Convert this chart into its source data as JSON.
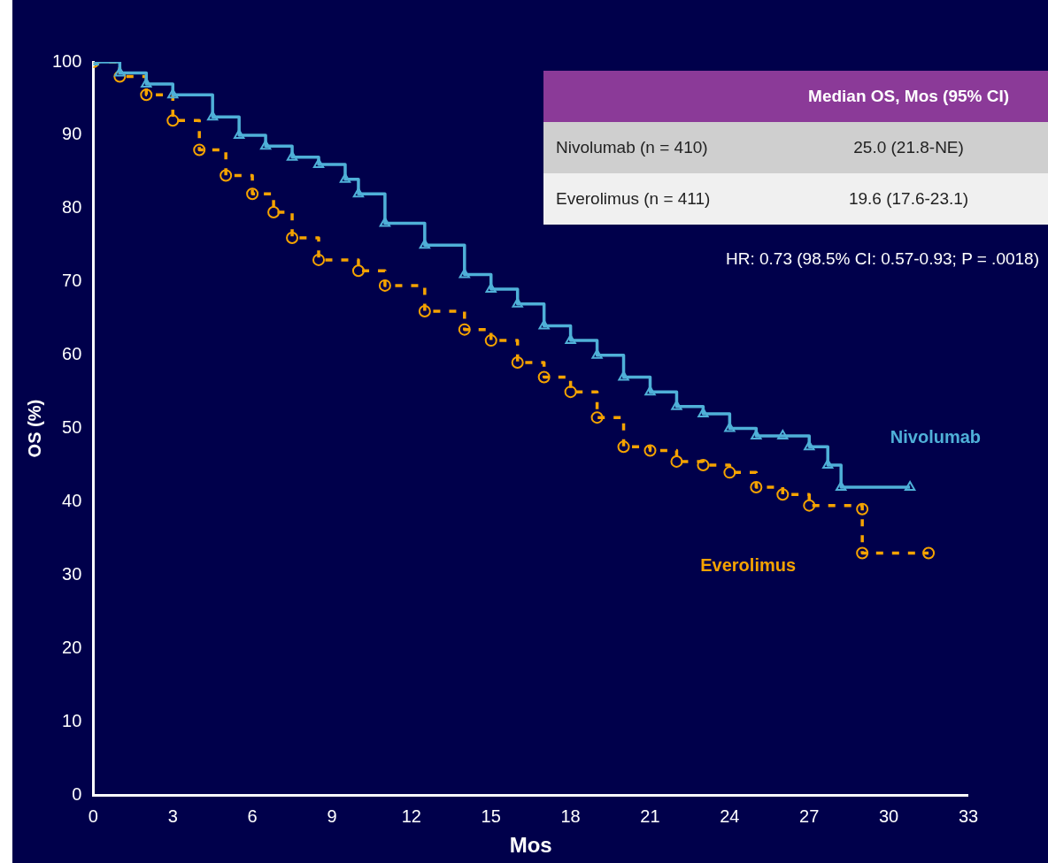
{
  "chart_data": {
    "type": "step",
    "xlabel": "Mos",
    "ylabel": "OS (%)",
    "xlim": [
      0,
      33
    ],
    "xticks": [
      0,
      3,
      6,
      9,
      12,
      15,
      18,
      21,
      24,
      27,
      30,
      33
    ],
    "ylim": [
      0,
      100
    ],
    "yticks": [
      0,
      10,
      20,
      30,
      40,
      50,
      60,
      70,
      80,
      90,
      100
    ],
    "grid": false,
    "legend": false,
    "annotations": [
      "Median OS, Mos (95% CI)",
      "Nivolumab (n = 410)",
      "25.0 (21.8-NE)",
      "Everolimus (n = 411)",
      "19.6 (17.6-23.1)",
      "HR: 0.73 (98.5% CI: 0.57-0.93; P = .0018)"
    ],
    "series": [
      {
        "name": "Nivolumab",
        "color": "#4fb0d8",
        "marker": "triangle",
        "line_style": "solid",
        "x": [
          0,
          1,
          2,
          3,
          4.5,
          5.5,
          6.5,
          7.5,
          8.5,
          9.5,
          10,
          11,
          12.5,
          14,
          15,
          16,
          17,
          18,
          19,
          20,
          21,
          22,
          23,
          24,
          25,
          26,
          27,
          27.7,
          28.2,
          30.8
        ],
        "values": [
          100,
          98.5,
          97,
          95.5,
          92.5,
          90,
          88.5,
          87,
          86,
          84,
          82,
          78,
          75,
          71,
          69,
          67,
          64,
          62,
          60,
          57,
          55,
          53,
          52,
          50,
          49,
          49,
          47.5,
          45,
          42,
          42
        ]
      },
      {
        "name": "Everolimus",
        "color": "#f5a300",
        "marker": "circle",
        "line_style": "dashed",
        "x": [
          0,
          1,
          2,
          3,
          4,
          5,
          6,
          6.8,
          7.5,
          8.5,
          10,
          11,
          12.5,
          14,
          15,
          16,
          17,
          18,
          19,
          20,
          21,
          22,
          23,
          24,
          25,
          26,
          27,
          29,
          29,
          31.5
        ],
        "values": [
          100,
          98,
          95.5,
          92,
          88,
          84.5,
          82,
          79.5,
          76,
          73,
          71.5,
          69.5,
          66,
          63.5,
          62,
          59,
          57,
          55,
          51.5,
          47.5,
          47,
          45.5,
          45,
          44,
          42,
          41,
          39.5,
          39,
          33,
          33
        ]
      }
    ]
  }
}
